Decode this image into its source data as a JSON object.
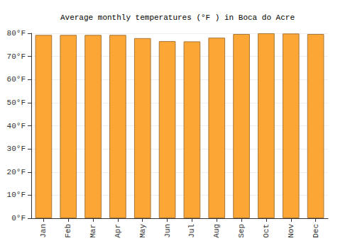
{
  "chart_data": {
    "type": "bar",
    "title": "Average monthly temperatures (°F ) in Boca do Acre",
    "categories": [
      "Jan",
      "Feb",
      "Mar",
      "Apr",
      "May",
      "Jun",
      "Jul",
      "Aug",
      "Sep",
      "Oct",
      "Nov",
      "Dec"
    ],
    "values": [
      79.3,
      79.3,
      79.3,
      79.3,
      77.9,
      76.6,
      76.5,
      78.1,
      79.7,
      80.0,
      79.9,
      79.7
    ],
    "color": "#fca735",
    "ylim": [
      0,
      80
    ],
    "yticks": [
      {
        "value": 0,
        "label": "0°F"
      },
      {
        "value": 10,
        "label": "10°F"
      },
      {
        "value": 20,
        "label": "20°F"
      },
      {
        "value": 30,
        "label": "30°F"
      },
      {
        "value": 40,
        "label": "40°F"
      },
      {
        "value": 50,
        "label": "50°F"
      },
      {
        "value": 60,
        "label": "60°F"
      },
      {
        "value": 70,
        "label": "70°F"
      },
      {
        "value": 80,
        "label": "80°F"
      }
    ],
    "grid": true
  }
}
